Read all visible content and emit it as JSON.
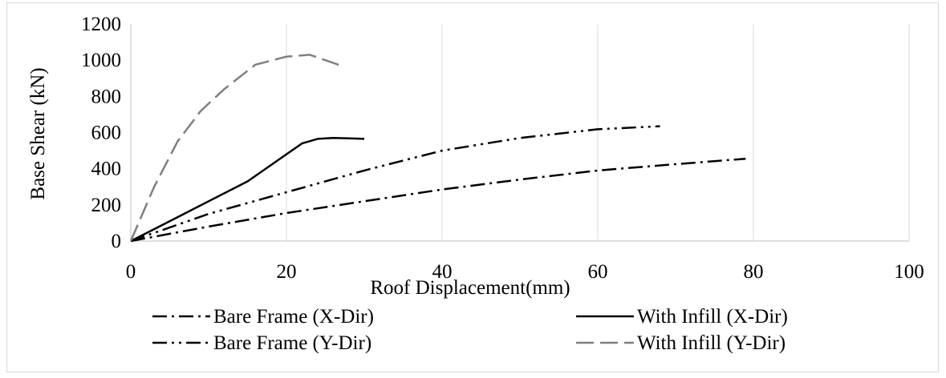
{
  "chart_data": {
    "type": "line",
    "title": "",
    "xlabel": "Roof Displacement(mm)",
    "ylabel": "Base Shear (kN)",
    "xlim": [
      0,
      100
    ],
    "ylim": [
      0,
      1200
    ],
    "xticks": [
      0,
      20,
      40,
      60,
      80,
      100
    ],
    "yticks": [
      0,
      200,
      400,
      600,
      800,
      1000,
      1200
    ],
    "grid": "vertical",
    "legend_position": "bottom",
    "series": [
      {
        "name": "Bare Frame (X-Dir)",
        "style": "dash-dot",
        "color": "#000000",
        "x": [
          0,
          10,
          20,
          30,
          40,
          50,
          60,
          70,
          79
        ],
        "y": [
          0,
          80,
          155,
          220,
          285,
          340,
          390,
          425,
          455
        ]
      },
      {
        "name": "With Infill (X-Dir)",
        "style": "solid",
        "color": "#000000",
        "x": [
          0,
          5,
          10,
          15,
          20,
          22,
          24,
          26,
          28,
          30
        ],
        "y": [
          0,
          110,
          220,
          330,
          480,
          540,
          565,
          570,
          568,
          565
        ]
      },
      {
        "name": "Bare Frame (Y-Dir)",
        "style": "dash-dot-dot",
        "color": "#000000",
        "x": [
          0,
          10,
          20,
          30,
          40,
          50,
          60,
          68
        ],
        "y": [
          0,
          150,
          270,
          390,
          500,
          570,
          618,
          635
        ]
      },
      {
        "name": "With Infill (Y-Dir)",
        "style": "long-dash",
        "color": "#7f7f7f",
        "x": [
          0,
          3,
          6,
          9,
          12,
          16,
          20,
          23,
          27
        ],
        "y": [
          0,
          300,
          550,
          720,
          840,
          975,
          1020,
          1030,
          970
        ]
      }
    ]
  }
}
